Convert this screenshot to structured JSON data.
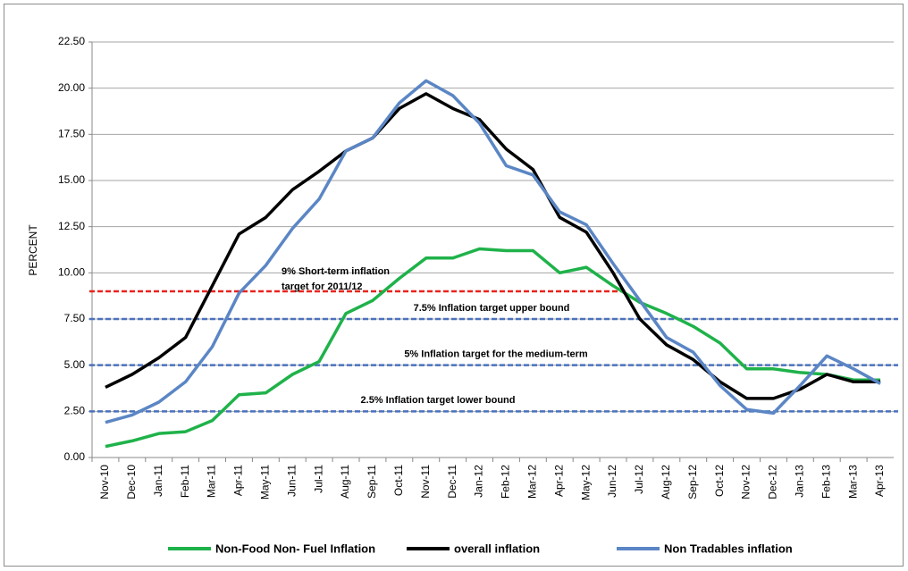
{
  "chart_data": {
    "type": "line",
    "y_label": "PERCENT",
    "categories": [
      "Nov-10",
      "Dec-10",
      "Jan-11",
      "Feb-11",
      "Mar-11",
      "Apr-11",
      "May-11",
      "Jun-11",
      "Jul-11",
      "Aug-11",
      "Sep-11",
      "Oct-11",
      "Nov-11",
      "Dec-11",
      "Jan-12",
      "Feb-12",
      "Mar-12",
      "Apr-12",
      "May-12",
      "Jun-12",
      "Jul-12",
      "Aug-12",
      "Sep-12",
      "Oct-12",
      "Nov-12",
      "Dec-12",
      "Jan-13",
      "Feb-13",
      "Mar-13",
      "Apr-13"
    ],
    "series": [
      {
        "name": "Non-Food Non- Fuel Inflation",
        "color": "#1fb24a",
        "values": [
          0.6,
          0.9,
          1.3,
          1.4,
          2.0,
          3.4,
          3.5,
          4.5,
          5.2,
          7.8,
          8.5,
          9.7,
          10.8,
          10.8,
          11.3,
          11.2,
          11.2,
          10.0,
          10.3,
          9.3,
          8.4,
          7.8,
          7.1,
          6.2,
          4.8,
          4.8,
          4.6,
          4.5,
          4.2,
          4.2
        ]
      },
      {
        "name": "overall inflation",
        "color": "#000000",
        "values": [
          3.8,
          4.5,
          5.4,
          6.5,
          9.3,
          12.1,
          13.0,
          14.5,
          15.5,
          16.6,
          17.3,
          18.9,
          19.7,
          18.9,
          18.3,
          16.7,
          15.6,
          13.0,
          12.2,
          10.0,
          7.5,
          6.1,
          5.3,
          4.1,
          3.2,
          3.2,
          3.7,
          4.5,
          4.1,
          4.1
        ]
      },
      {
        "name": "Non Tradables inflation",
        "color": "#5b86c5",
        "values": [
          1.9,
          2.3,
          3.0,
          4.1,
          6.0,
          8.9,
          10.4,
          12.4,
          14.0,
          16.6,
          17.3,
          19.2,
          20.4,
          19.6,
          18.1,
          15.8,
          15.3,
          13.3,
          12.6,
          10.5,
          8.5,
          6.5,
          5.7,
          3.9,
          2.6,
          2.4,
          3.9,
          5.5,
          4.8,
          4.0
        ]
      }
    ],
    "reference_lines": [
      {
        "value": 9,
        "color": "#e8241e",
        "label": [
          "9%  Short-term inflation",
          "target  for 2011/12"
        ]
      },
      {
        "value": 7.5,
        "color": "#4a72bd",
        "label": [
          "7.5% Inflation target upper bound"
        ]
      },
      {
        "value": 5,
        "color": "#4a72bd",
        "label": [
          "5% Inflation target for the medium-term"
        ]
      },
      {
        "value": 2.5,
        "color": "#4a72bd",
        "label": [
          "2.5% Inflation target lower bound"
        ]
      }
    ],
    "ylim": [
      0,
      22.5
    ],
    "yticks": [
      {
        "value": 0,
        "label": "0.00"
      },
      {
        "value": 2.5,
        "label": "2.50"
      },
      {
        "value": 5,
        "label": "5.00"
      },
      {
        "value": 7.5,
        "label": "7.50"
      },
      {
        "value": 10,
        "label": "10.00"
      },
      {
        "value": 12.5,
        "label": "12.50"
      },
      {
        "value": 15,
        "label": "15.00"
      },
      {
        "value": 17.5,
        "label": "17.50"
      },
      {
        "value": 20,
        "label": "20.00"
      },
      {
        "value": 22.5,
        "label": "22.50"
      }
    ],
    "grid": true,
    "legend": "bottom"
  }
}
